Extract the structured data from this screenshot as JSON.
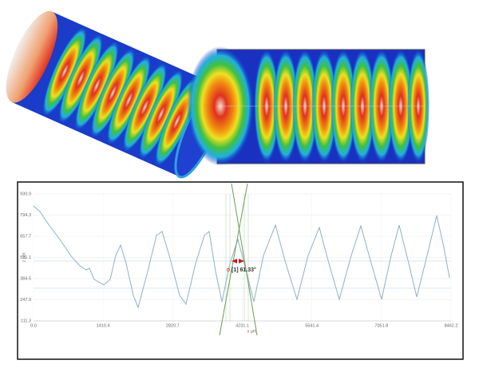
{
  "chart_data": {
    "type": "line",
    "x_label": "x μm",
    "y_label": "z μm",
    "annotation": "[1] 61.33°",
    "x": [
      0,
      129,
      291,
      534,
      777,
      938,
      1068,
      1133,
      1230,
      1424,
      1553,
      1667,
      1764,
      1877,
      2022,
      2120,
      2314,
      2492,
      2605,
      2751,
      2961,
      3090,
      3285,
      3463,
      3560,
      3689,
      3819,
      3980,
      4142,
      4272,
      4466,
      4660,
      4903,
      5113,
      5339,
      5566,
      5792,
      5987,
      6197,
      6440,
      6634,
      6845,
      7054,
      7248,
      7410,
      7604,
      7766,
      7976,
      8171,
      8317,
      8430
    ],
    "series": [
      {
        "color": "#8fb0c8",
        "values": [
          853.6,
          817.5,
          740.2,
          637.1,
          523.6,
          467.0,
          441.2,
          451.5,
          379.3,
          343.2,
          379.3,
          534.0,
          601.0,
          482.4,
          276.2,
          198.9,
          430.9,
          662.8,
          688.6,
          534.0,
          276.2,
          219.5,
          482.4,
          662.8,
          688.6,
          430.9,
          235.0,
          482.4,
          637.1,
          482.4,
          235.0,
          534.0,
          729.9,
          482.4,
          250.4,
          534.0,
          714.4,
          482.4,
          250.4,
          534.0,
          724.7,
          482.4,
          250.4,
          534.0,
          729.9,
          482.4,
          265.9,
          534.0,
          791.7,
          585.5,
          389.6
        ]
      }
    ],
    "xlim": [
      0,
      8462.2
    ],
    "xticks": [
      {
        "value": 0,
        "label": "0.0"
      },
      1410.4,
      2820.7,
      4231.1,
      5641.4,
      7051.8,
      8462.2
    ],
    "ylim": [
      111.3,
      930.9
    ],
    "yticks": [
      111.3,
      247.9,
      384.5,
      521.1,
      657.7,
      794.3,
      930.9
    ],
    "grid": true
  }
}
